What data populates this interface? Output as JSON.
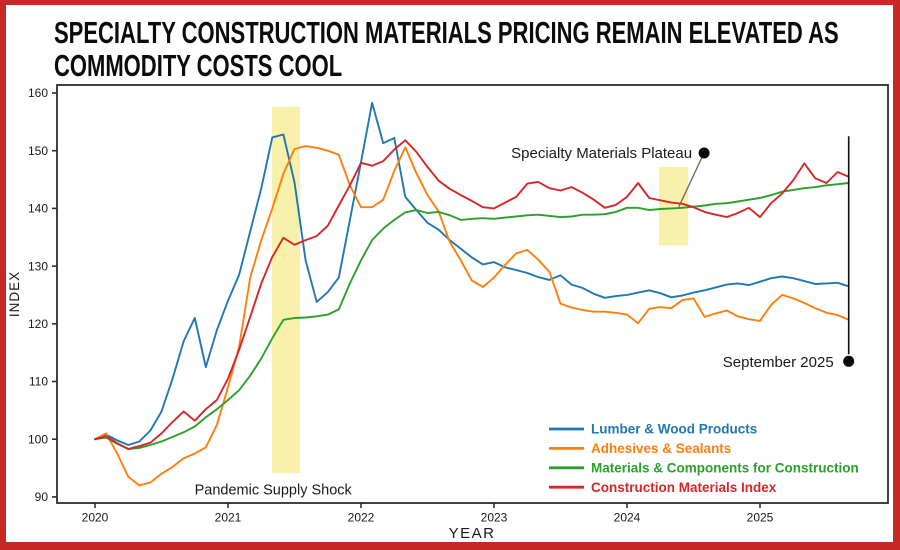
{
  "title": {
    "line1": "SPECIALTY CONSTRUCTION MATERIALS PRICING REMAIN ELEVATED AS",
    "line2": "COMMODITY COSTS COOL"
  },
  "colors": {
    "frame": "#c62a26",
    "axis": "#2e2e2e",
    "tick_text": "#1a1a1a",
    "annotation_text": "#1a1a1a",
    "annotation_dot": "#0a0a0a",
    "pointer_line": "#666666",
    "marker_line": "#111111",
    "band": "#f8f1ac"
  },
  "chart_data": {
    "type": "line",
    "xlabel": "YEAR",
    "ylabel": "INDEX",
    "x_start": "2020-01",
    "x_end": "2025-09",
    "x_interval": "monthly",
    "x_ticks": [
      2020,
      2021,
      2022,
      2023,
      2024,
      2025
    ],
    "y_ticks": [
      90,
      100,
      110,
      120,
      130,
      140,
      150,
      160
    ],
    "xlim": [
      2019.71,
      2025.95
    ],
    "ylim": [
      88.9,
      161.4
    ],
    "grid": false,
    "legend_position": "lower right",
    "series": [
      {
        "name": "Lumber & Wood Products",
        "color": "#1f77b4",
        "values": [
          100,
          100.8,
          99.8,
          99,
          99.6,
          101.5,
          104.8,
          110.5,
          117,
          121,
          112.5,
          118.9,
          124,
          128.5,
          136,
          143.5,
          152.3,
          152.8,
          144.5,
          131,
          123.8,
          125.5,
          128,
          138,
          148,
          158.3,
          151.3,
          152.2,
          142,
          139.7,
          137.5,
          136.3,
          134.5,
          133,
          131.5,
          130.3,
          130.7,
          129.8,
          129.3,
          128.8,
          128.1,
          127.6,
          128.4,
          126.8,
          126.2,
          125.2,
          124.5,
          124.8,
          125,
          125.4,
          125.8,
          125.3,
          124.6,
          124.9,
          125.4,
          125.8,
          126.3,
          126.8,
          127,
          126.7,
          127.3,
          127.9,
          128.2,
          127.9,
          127.4,
          126.9,
          127,
          127.1,
          126.5
        ]
      },
      {
        "name": "Adhesives & Sealants",
        "color": "#ff7f0e",
        "values": [
          100,
          101,
          97.5,
          93.5,
          92,
          92.5,
          94,
          95.2,
          96.7,
          97.5,
          98.6,
          102.5,
          109,
          116,
          128,
          134.5,
          140,
          146,
          150.3,
          150.8,
          150.5,
          150,
          149.3,
          144,
          140.2,
          140.2,
          141.5,
          146.5,
          150.6,
          146.1,
          142.3,
          139.5,
          134.2,
          131,
          127.5,
          126.4,
          128,
          130.2,
          132.2,
          132.8,
          131.1,
          129,
          123.5,
          122.8,
          122.4,
          122.1,
          122.1,
          121.9,
          121.6,
          120.1,
          122.6,
          122.9,
          122.7,
          124.1,
          124.4,
          121.2,
          121.8,
          122.3,
          121.3,
          120.8,
          120.5,
          123.3,
          125,
          124.4,
          123.6,
          122.7,
          121.9,
          121.5,
          120.7
        ]
      },
      {
        "name": "Materials & Components for Construction",
        "color": "#2ca02c",
        "values": [
          100,
          100.3,
          99.2,
          98.3,
          98.5,
          99,
          99.6,
          100.4,
          101.2,
          102.2,
          103.8,
          105.2,
          106.8,
          108.5,
          111,
          114,
          117.5,
          120.7,
          121,
          121.1,
          121.3,
          121.6,
          122.5,
          127,
          131,
          134.5,
          136.5,
          138,
          139.3,
          139.7,
          139.2,
          139.4,
          138.8,
          138,
          138.2,
          138.3,
          138.2,
          138.4,
          138.6,
          138.8,
          138.9,
          138.7,
          138.5,
          138.6,
          138.9,
          138.9,
          139,
          139.4,
          140.1,
          140.1,
          139.7,
          139.9,
          140,
          140.1,
          140.3,
          140.5,
          140.8,
          140.9,
          141.2,
          141.5,
          141.8,
          142.3,
          142.9,
          143.2,
          143.5,
          143.7,
          144,
          144.2,
          144.4
        ]
      },
      {
        "name": "Construction Materials Index",
        "color": "#d62728",
        "values": [
          100,
          100.5,
          99.3,
          98.3,
          98.8,
          99.4,
          101,
          103,
          104.8,
          103.2,
          105.2,
          106.8,
          110.5,
          115.5,
          121.2,
          127,
          131.6,
          134.9,
          133.7,
          134.5,
          135.2,
          137,
          140.5,
          144,
          147.9,
          147.4,
          148.2,
          150.2,
          151.8,
          149.8,
          147.2,
          144.8,
          143.4,
          142.3,
          141.3,
          140.2,
          140,
          141,
          142,
          144.3,
          144.6,
          143.5,
          143.1,
          143.7,
          142.7,
          141.5,
          140.1,
          140.6,
          142,
          144.4,
          141.8,
          141.4,
          141,
          140.8,
          140.2,
          139.4,
          138.9,
          138.5,
          139.2,
          140.1,
          138.5,
          140.9,
          142.6,
          144.9,
          147.8,
          145.2,
          144.4,
          146.3,
          145.5
        ]
      }
    ],
    "highlight_bands": [
      {
        "id": "pandemic",
        "x_from": 2021.331,
        "x_to": 2021.541,
        "y_from": 94.1,
        "y_to": 157.6
      },
      {
        "id": "plateau",
        "x_from": 2024.24,
        "x_to": 2024.46,
        "y_from": 133.6,
        "y_to": 147.2
      }
    ],
    "annotations": {
      "plateau": {
        "text": "Specialty Materials Plateau",
        "dot_x": 2024.58,
        "dot_y": 149.6,
        "pointer_x": 2024.39,
        "pointer_y": 140.3
      },
      "september": {
        "text": "September 2025",
        "line_x": 2025.667,
        "line_top": 152.5,
        "dot_y": 113.5
      },
      "pandemic": {
        "text": "Pandemic Supply Shock",
        "x": 2021.34,
        "y": 91.0
      }
    }
  }
}
